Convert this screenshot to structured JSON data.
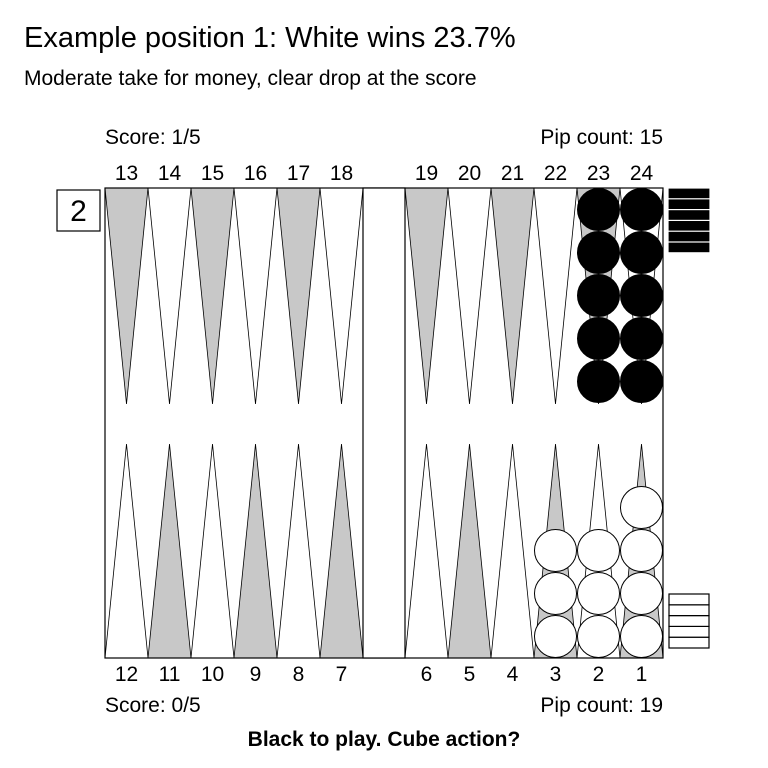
{
  "title": "Example position 1: White wins 23.7%",
  "subtitle": "Moderate take for money, clear drop at the score",
  "top_player": {
    "score_label": "Score: 1/5",
    "pip_label": "Pip count: 15",
    "borne_off": 6
  },
  "bottom_player": {
    "score_label": "Score: 0/5",
    "pip_label": "Pip count: 19",
    "borne_off": 5
  },
  "cube": {
    "value": "2",
    "owner": "top"
  },
  "footer": "Black to play. Cube action?",
  "point_numbers": {
    "top": [
      "13",
      "14",
      "15",
      "16",
      "17",
      "18",
      "19",
      "20",
      "21",
      "22",
      "23",
      "24"
    ],
    "bottom": [
      "12",
      "11",
      "10",
      "9",
      "8",
      "7",
      "6",
      "5",
      "4",
      "3",
      "2",
      "1"
    ]
  },
  "checkers": [
    {
      "point": "23",
      "color": "black",
      "count": 5
    },
    {
      "point": "24",
      "color": "black",
      "count": 5
    },
    {
      "point": "3",
      "color": "white",
      "count": 3
    },
    {
      "point": "2",
      "color": "white",
      "count": 3
    },
    {
      "point": "1",
      "color": "white",
      "count": 4
    }
  ],
  "colors": {
    "dark_point": "#c8c8c8",
    "light_point": "#ffffff",
    "black_checker": "#000000",
    "white_checker": "#ffffff",
    "border": "#000000"
  }
}
